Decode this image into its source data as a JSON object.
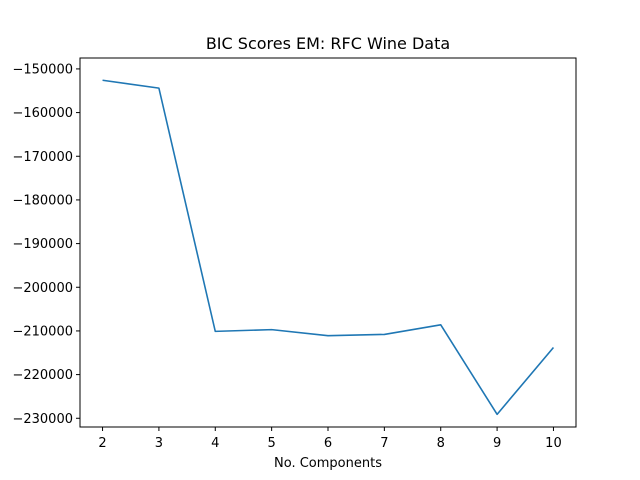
{
  "chart_data": {
    "type": "line",
    "title": "BIC Scores EM: RFC Wine Data",
    "xlabel": "No. Components",
    "ylabel": "",
    "x": [
      2,
      3,
      4,
      5,
      6,
      7,
      8,
      9,
      10
    ],
    "series": [
      {
        "values": [
          -152600,
          -154400,
          -210100,
          -209700,
          -211100,
          -210800,
          -208600,
          -229100,
          -213800
        ],
        "color": "#1f77b4"
      }
    ],
    "xticks": [
      "2",
      "3",
      "4",
      "5",
      "6",
      "7",
      "8",
      "9",
      "10"
    ],
    "yticks": [
      "−150000",
      "−160000",
      "−170000",
      "−180000",
      "−190000",
      "−200000",
      "−210000",
      "−220000",
      "−230000"
    ],
    "xlim": [
      1.6,
      10.4
    ],
    "ylim": [
      -232000,
      -147500
    ],
    "grid": false
  }
}
